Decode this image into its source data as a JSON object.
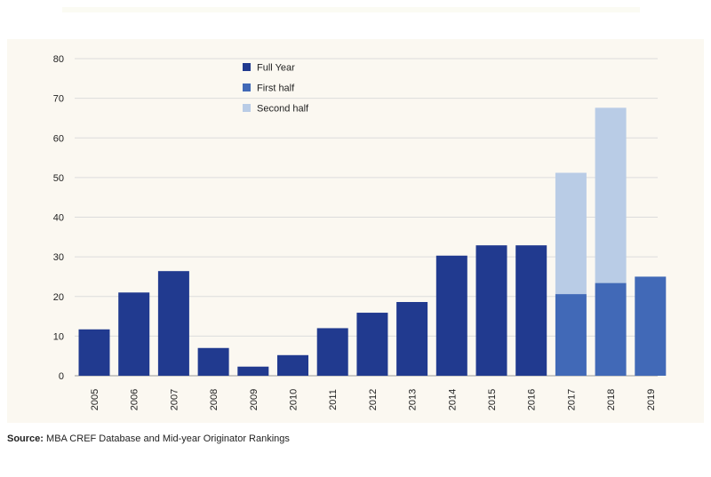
{
  "chart_data": {
    "type": "bar",
    "categories": [
      "2005",
      "2006",
      "2007",
      "2008",
      "2009",
      "2010",
      "2011",
      "2012",
      "2013",
      "2014",
      "2015",
      "2016",
      "2017",
      "2018",
      "2019"
    ],
    "series": [
      {
        "name": "Full Year",
        "color": "#213a8f",
        "values": [
          11.7,
          21,
          26.4,
          7,
          2.3,
          5.2,
          12,
          15.9,
          18.6,
          30.3,
          32.9,
          32.9,
          null,
          null,
          null
        ]
      },
      {
        "name": "First half",
        "color": "#4169b7",
        "values": [
          null,
          null,
          null,
          null,
          null,
          null,
          null,
          null,
          null,
          null,
          null,
          null,
          20.6,
          23.4,
          25
        ]
      },
      {
        "name": "Second half",
        "color": "#b9cce6",
        "values": [
          null,
          null,
          null,
          null,
          null,
          null,
          null,
          null,
          null,
          null,
          null,
          null,
          30.6,
          44.2,
          null
        ]
      }
    ],
    "stacked": true,
    "ylim": [
      0,
      80
    ],
    "yticks": [
      0,
      10,
      20,
      30,
      40,
      50,
      60,
      70,
      80
    ],
    "grid": true,
    "legend_position": "top-center"
  },
  "source": {
    "label": "Source:",
    "text": " MBA CREF Database and Mid-year Originator Rankings"
  }
}
